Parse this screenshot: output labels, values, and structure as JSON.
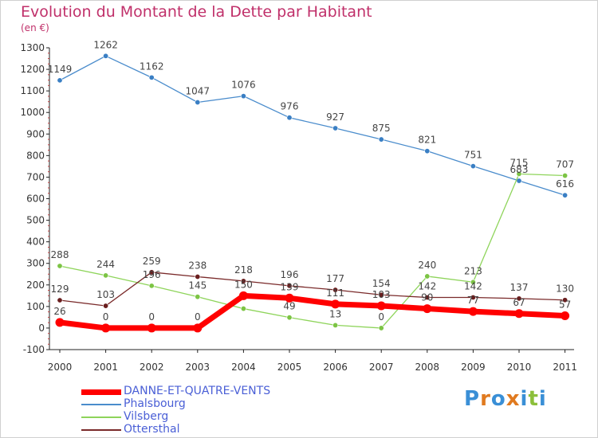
{
  "title": "Evolution du Montant de la Dette par Habitant",
  "subtitle": "(en €)",
  "logo": {
    "text": "Proxiti",
    "letters": [
      {
        "ch": "P",
        "color": "#3a8fd6"
      },
      {
        "ch": "r",
        "color": "#e07a1f"
      },
      {
        "ch": "o",
        "color": "#3a8fd6"
      },
      {
        "ch": "x",
        "color": "#e07a1f"
      },
      {
        "ch": "i",
        "color": "#3a8fd6"
      },
      {
        "ch": "t",
        "color": "#8cbf3a"
      },
      {
        "ch": "i",
        "color": "#3a8fd6"
      }
    ]
  },
  "chart_data": {
    "type": "line",
    "categories": [
      "2000",
      "2001",
      "2002",
      "2003",
      "2004",
      "2005",
      "2006",
      "2007",
      "2008",
      "2009",
      "2010",
      "2011"
    ],
    "ylim": [
      -100,
      1300
    ],
    "yticks": [
      -100,
      0,
      100,
      200,
      300,
      400,
      500,
      600,
      700,
      800,
      900,
      1000,
      1100,
      1200,
      1300
    ],
    "grid": false,
    "legend": "bottom-left",
    "series": [
      {
        "name": "Phalsbourg",
        "color": "#4a8ccc",
        "marker": "#3a7fc4",
        "width": 1.3,
        "values": [
          1149,
          1262,
          1162,
          1047,
          1076,
          976,
          927,
          875,
          821,
          751,
          683,
          616
        ],
        "labels": [
          "1149",
          "1262",
          "1162",
          "1047",
          "1076",
          "976",
          "927",
          "875",
          "821",
          "751",
          "683",
          "616"
        ]
      },
      {
        "name": "Vilsberg",
        "color": "#8ed45a",
        "marker": "#7cc444",
        "width": 1.3,
        "values": [
          288,
          244,
          196,
          145,
          90,
          49,
          13,
          0,
          240,
          213,
          715,
          707
        ],
        "labels": [
          "288",
          "244",
          "196",
          "145",
          "",
          "49",
          "13",
          "0",
          "240",
          "213",
          "715",
          "707"
        ]
      },
      {
        "name": "Ottersthal",
        "color": "#7a2a2a",
        "marker": "#6a1e1e",
        "width": 1.3,
        "values": [
          129,
          103,
          259,
          238,
          218,
          196,
          177,
          154,
          142,
          142,
          137,
          130
        ],
        "labels": [
          "129",
          "103",
          "259",
          "238",
          "218",
          "196",
          "177",
          "154",
          "142",
          "142",
          "137",
          "130"
        ]
      },
      {
        "name": "DANNE-ET-QUATRE-VENTS",
        "color": "#ff0000",
        "marker": "#ff0000",
        "width": 7,
        "values": [
          26,
          0,
          0,
          0,
          150,
          139,
          111,
          103,
          90,
          77,
          67,
          57
        ],
        "labels": [
          "26",
          "0",
          "0",
          "0",
          "150",
          "139",
          "111",
          "103",
          "90",
          "77",
          "67",
          "57"
        ]
      }
    ]
  },
  "legend_items": [
    {
      "name": "DANNE-ET-QUATRE-VENTS",
      "color": "#ff0000",
      "thickness": 7
    },
    {
      "name": "Phalsbourg",
      "color": "#4a8ccc",
      "thickness": 2
    },
    {
      "name": "Vilsberg",
      "color": "#8ed45a",
      "thickness": 2
    },
    {
      "name": "Ottersthal",
      "color": "#7a2a2a",
      "thickness": 2
    }
  ]
}
